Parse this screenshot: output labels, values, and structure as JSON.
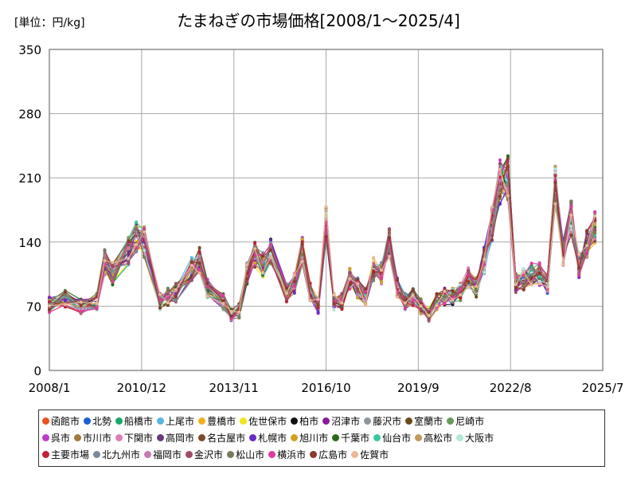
{
  "chart_data": {
    "type": "line",
    "title": "たまねぎの市場価格[2008/1～2025/4]",
    "unit_label": "[単位：円/kg]",
    "xlabel": "",
    "ylabel": "",
    "x_ticks": [
      "2008/1",
      "2010/12",
      "2013/11",
      "2016/10",
      "2019/9",
      "2022/8",
      "2025/7"
    ],
    "y_ticks": [
      0,
      70,
      140,
      210,
      280,
      350
    ],
    "ylim": [
      0,
      350
    ],
    "xlim": [
      "2008/1",
      "2025/7"
    ],
    "grid": "vertical and horizontal",
    "legend_position": "bottom",
    "x": [
      "2008/1",
      "2008/7",
      "2009/1",
      "2009/7",
      "2009/10",
      "2010/1",
      "2010/7",
      "2010/10",
      "2011/1",
      "2011/7",
      "2011/10",
      "2012/1",
      "2012/7",
      "2012/10",
      "2013/1",
      "2013/7",
      "2013/10",
      "2014/1",
      "2014/4",
      "2014/7",
      "2014/10",
      "2015/1",
      "2015/7",
      "2015/10",
      "2016/1",
      "2016/4",
      "2016/7",
      "2016/10",
      "2017/1",
      "2017/4",
      "2017/7",
      "2017/10",
      "2018/1",
      "2018/4",
      "2018/7",
      "2018/10",
      "2019/1",
      "2019/4",
      "2019/7",
      "2019/10",
      "2020/1",
      "2020/4",
      "2020/7",
      "2020/10",
      "2021/1",
      "2021/4",
      "2021/7",
      "2021/10",
      "2022/1",
      "2022/4",
      "2022/7",
      "2022/10",
      "2023/1",
      "2023/4",
      "2023/7",
      "2023/10",
      "2024/1",
      "2024/4",
      "2024/7",
      "2024/10",
      "2025/1",
      "2025/4"
    ],
    "base_values": [
      72,
      78,
      70,
      75,
      118,
      105,
      130,
      145,
      140,
      75,
      80,
      85,
      110,
      120,
      90,
      75,
      60,
      65,
      105,
      125,
      115,
      130,
      85,
      95,
      130,
      85,
      70,
      160,
      75,
      75,
      100,
      90,
      80,
      110,
      105,
      140,
      90,
      75,
      80,
      70,
      60,
      75,
      80,
      80,
      85,
      100,
      90,
      120,
      160,
      205,
      210,
      95,
      100,
      105,
      105,
      95,
      200,
      130,
      165,
      115,
      140,
      155
    ],
    "series": [
      {
        "name": "函館市",
        "color": "#e8531f"
      },
      {
        "name": "北勢",
        "color": "#1a5fd0"
      },
      {
        "name": "船橋市",
        "color": "#1aa86a"
      },
      {
        "name": "上尾市",
        "color": "#5ab4e6"
      },
      {
        "name": "豊橋市",
        "color": "#f0b020"
      },
      {
        "name": "佐世保市",
        "color": "#f2e21a"
      },
      {
        "name": "柏市",
        "color": "#111111"
      },
      {
        "name": "沼津市",
        "color": "#8a1a9a"
      },
      {
        "name": "藤沢市",
        "color": "#8e959b"
      },
      {
        "name": "室蘭市",
        "color": "#6a4a1a"
      },
      {
        "name": "尼崎市",
        "color": "#6a9a5a"
      },
      {
        "name": "呉市",
        "color": "#c03ac8"
      },
      {
        "name": "市川市",
        "color": "#a07a3a"
      },
      {
        "name": "下関市",
        "color": "#e07ab8"
      },
      {
        "name": "高岡市",
        "color": "#6a3a7a"
      },
      {
        "name": "名古屋市",
        "color": "#7a4a2a"
      },
      {
        "name": "札幌市",
        "color": "#6a2ac8"
      },
      {
        "name": "旭川市",
        "color": "#d0a020"
      },
      {
        "name": "千葉市",
        "color": "#2a6a1a"
      },
      {
        "name": "仙台市",
        "color": "#3ac8a0"
      },
      {
        "name": "高松市",
        "color": "#c09a5a"
      },
      {
        "name": "大阪市",
        "color": "#b0e8d8"
      },
      {
        "name": "主要市場",
        "color": "#c0203a"
      },
      {
        "name": "北九州市",
        "color": "#7a8a9a"
      },
      {
        "name": "福岡市",
        "color": "#c87ab0"
      },
      {
        "name": "金沢市",
        "color": "#a04a6a"
      },
      {
        "name": "松山市",
        "color": "#7a7a5a"
      },
      {
        "name": "横浜市",
        "color": "#e03aa0"
      },
      {
        "name": "広島市",
        "color": "#8a3a2a"
      },
      {
        "name": "佐賀市",
        "color": "#e8b898"
      }
    ]
  }
}
